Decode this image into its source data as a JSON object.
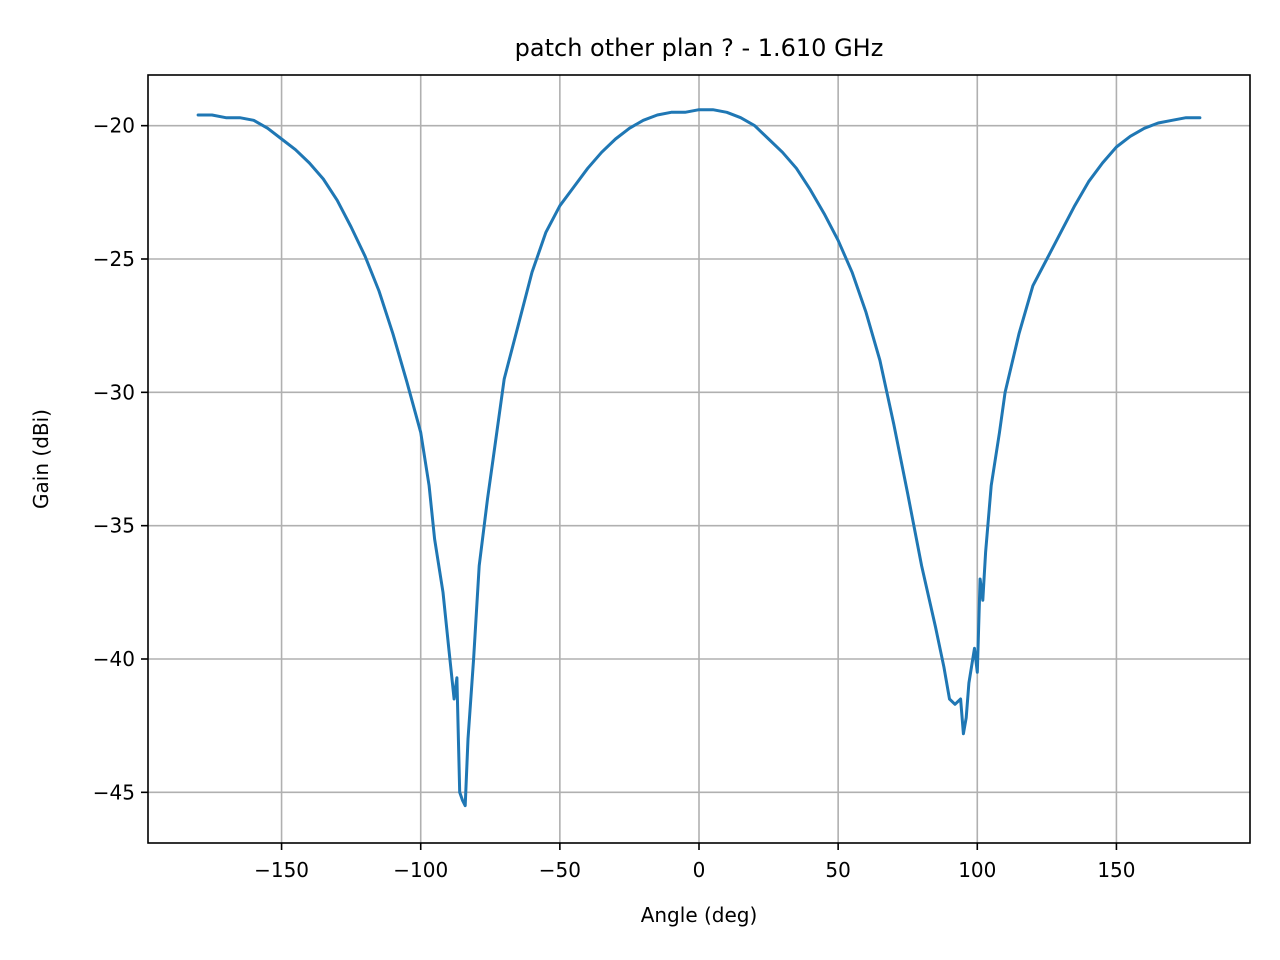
{
  "chart_data": {
    "type": "line",
    "title": "patch other plan ? - 1.610 GHz",
    "xlabel": "Angle (deg)",
    "ylabel": "Gain (dBi)",
    "xlim": [
      -198,
      198
    ],
    "ylim": [
      -46.9,
      -18.1
    ],
    "xticks": [
      -150,
      -100,
      -50,
      0,
      50,
      100,
      150
    ],
    "yticks": [
      -20,
      -25,
      -30,
      -35,
      -40,
      -45
    ],
    "grid": true,
    "series": [
      {
        "color": "#1f77b4",
        "x": [
          -180,
          -175,
          -170,
          -165,
          -160,
          -155,
          -150,
          -145,
          -140,
          -135,
          -130,
          -125,
          -120,
          -115,
          -110,
          -105,
          -100,
          -97,
          -95,
          -92,
          -90,
          -88,
          -87,
          -86,
          -85,
          -84,
          -83,
          -81,
          -79,
          -76,
          -74,
          -70,
          -65,
          -60,
          -55,
          -50,
          -45,
          -40,
          -35,
          -30,
          -25,
          -20,
          -15,
          -10,
          -5,
          0,
          5,
          10,
          15,
          20,
          25,
          30,
          35,
          40,
          45,
          50,
          55,
          60,
          65,
          70,
          75,
          80,
          85,
          88,
          90,
          92,
          94,
          95,
          96,
          97,
          99,
          100,
          101,
          102,
          103,
          105,
          108,
          110,
          115,
          120,
          125,
          130,
          135,
          140,
          145,
          150,
          155,
          160,
          165,
          170,
          175,
          180
        ],
        "y": [
          -19.6,
          -19.6,
          -19.7,
          -19.7,
          -19.8,
          -20.1,
          -20.5,
          -20.9,
          -21.4,
          -22,
          -22.8,
          -23.8,
          -24.9,
          -26.2,
          -27.8,
          -29.6,
          -31.5,
          -33.5,
          -35.5,
          -37.5,
          -39.5,
          -41.5,
          -40.7,
          -45,
          -45.3,
          -45.5,
          -43,
          -40,
          -36.5,
          -34,
          -32.5,
          -29.5,
          -27.5,
          -25.5,
          -24,
          -23,
          -22.3,
          -21.6,
          -21,
          -20.5,
          -20.1,
          -19.8,
          -19.6,
          -19.5,
          -19.5,
          -19.4,
          -19.4,
          -19.5,
          -19.7,
          -20,
          -20.5,
          -21,
          -21.6,
          -22.4,
          -23.3,
          -24.3,
          -25.5,
          -27,
          -28.8,
          -31.2,
          -33.8,
          -36.5,
          -38.8,
          -40.3,
          -41.5,
          -41.7,
          -41.5,
          -42.8,
          -42.2,
          -40.9,
          -39.6,
          -40.5,
          -37,
          -37.8,
          -36,
          -33.5,
          -31.5,
          -30,
          -27.8,
          -26,
          -25,
          -24,
          -23,
          -22.1,
          -21.4,
          -20.8,
          -20.4,
          -20.1,
          -19.9,
          -19.8,
          -19.7,
          -19.7
        ]
      }
    ]
  }
}
